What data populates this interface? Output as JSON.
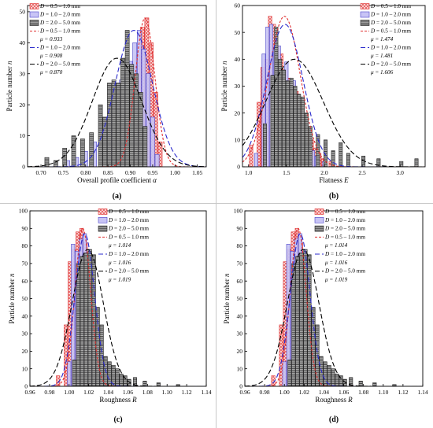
{
  "legend_entries": [
    {
      "D": "D",
      "range": " = 0.5 – 1.0 mm",
      "kind": "bar",
      "fill": "#f4c2c2",
      "stroke": "#e03030",
      "pattern": "cross-hatch"
    },
    {
      "D": "D",
      "range": " = 1.0 – 2.0 mm",
      "kind": "bar",
      "fill": "#c5c2f4",
      "stroke": "#4a44c8",
      "pattern": "solid"
    },
    {
      "D": "D",
      "range": " = 2.0 – 5.0 mm",
      "kind": "bar",
      "fill": "#7a7a7a",
      "stroke": "#222222",
      "pattern": "h-stripes"
    },
    {
      "D": "D",
      "range": " = 0.5 – 1.0 mm",
      "kind": "curve",
      "stroke": "#e03030"
    },
    {
      "D": "D",
      "range": " = 1.0 – 2.0 mm",
      "kind": "curve",
      "stroke": "#2a2acc"
    },
    {
      "D": "D",
      "range": " = 2.0 – 5.0 mm",
      "kind": "curve",
      "stroke": "#000000"
    }
  ],
  "chart_data": [
    {
      "type": "bar",
      "panel_label": "(a)",
      "xlabel_text": "Overall profile coefficient ",
      "xlabel_sym": "α",
      "ylabel_text": "Particle number ",
      "ylabel_sym": "n",
      "xlim": [
        0.67,
        1.07
      ],
      "ylim": [
        0,
        52
      ],
      "xticks": [
        "0.70",
        "0.75",
        "0.80",
        "0.85",
        "0.90",
        "0.95",
        "1.00",
        "1.05"
      ],
      "xtick_values": [
        0.7,
        0.75,
        0.8,
        0.85,
        0.9,
        0.95,
        1.0,
        1.05
      ],
      "yticks": [
        "0",
        "10",
        "20",
        "30",
        "40",
        "50"
      ],
      "ytick_values": [
        0,
        10,
        20,
        30,
        40,
        50
      ],
      "mu_labels": [
        "μ = 0.933",
        "μ = 0.908",
        "μ = 0.870"
      ],
      "bin_width": 0.01,
      "series": [
        {
          "name": "D = 0.5 – 1.0 mm",
          "x": [
            0.88,
            0.89,
            0.9,
            0.91,
            0.92,
            0.93,
            0.94,
            0.95,
            0.96,
            0.97
          ],
          "values": [
            2,
            6,
            14,
            24,
            36,
            45,
            48,
            40,
            24,
            8
          ]
        },
        {
          "name": "D = 1.0 – 2.0 mm",
          "x": [
            0.76,
            0.78,
            0.8,
            0.82,
            0.84,
            0.85,
            0.86,
            0.87,
            0.88,
            0.89,
            0.9,
            0.91,
            0.92,
            0.93,
            0.94,
            0.95,
            0.96
          ],
          "values": [
            2,
            3,
            5,
            8,
            12,
            16,
            20,
            24,
            28,
            30,
            34,
            40,
            44,
            38,
            30,
            16,
            4
          ]
        },
        {
          "name": "D = 2.0 – 5.0 mm",
          "x": [
            0.71,
            0.73,
            0.75,
            0.77,
            0.79,
            0.81,
            0.83,
            0.84,
            0.85,
            0.86,
            0.87,
            0.88,
            0.89,
            0.9,
            0.91,
            0.92,
            0.93
          ],
          "values": [
            3,
            2,
            6,
            10,
            9,
            11,
            20,
            16,
            27,
            28,
            27,
            35,
            44,
            33,
            30,
            24,
            13
          ]
        }
      ],
      "curves": [
        {
          "mu": 0.933,
          "sigma": 0.022,
          "peak": 48
        },
        {
          "mu": 0.908,
          "sigma": 0.042,
          "peak": 44
        },
        {
          "mu": 0.87,
          "sigma": 0.055,
          "peak": 35
        }
      ]
    },
    {
      "type": "bar",
      "panel_label": "(b)",
      "xlabel_text": "Flatness ",
      "xlabel_sym": "E",
      "ylabel_text": "Particle number ",
      "ylabel_sym": "n",
      "xlim": [
        0.92,
        3.33
      ],
      "ylim": [
        0,
        60
      ],
      "xticks": [
        "1.0",
        "1.5",
        "2.0",
        "2.5",
        "3.0"
      ],
      "xtick_values": [
        1.0,
        1.5,
        2.0,
        2.5,
        3.0
      ],
      "yticks": [
        "0",
        "10",
        "20",
        "30",
        "40",
        "50",
        "60"
      ],
      "ytick_values": [
        0,
        10,
        20,
        30,
        40,
        50,
        60
      ],
      "mu_labels": [
        "μ = 1.474",
        "μ = 1.481",
        "μ = 1.606"
      ],
      "bin_width": 0.05,
      "series": [
        {
          "name": "D = 0.5 – 1.0 mm",
          "x": [
            1.05,
            1.15,
            1.2,
            1.25,
            1.3,
            1.35,
            1.4,
            1.45,
            1.5,
            1.55,
            1.6,
            1.65,
            1.7,
            1.75,
            1.8,
            1.85,
            1.9,
            1.95,
            2.0,
            2.1
          ],
          "values": [
            8,
            24,
            37,
            40,
            56,
            53,
            45,
            42,
            36,
            33,
            31,
            28,
            24,
            18,
            14,
            10,
            7,
            5,
            3,
            2
          ]
        },
        {
          "name": "D = 1.0 – 2.0 mm",
          "x": [
            1.1,
            1.2,
            1.25,
            1.3,
            1.35,
            1.4,
            1.45,
            1.5,
            1.55,
            1.6,
            1.65,
            1.7,
            1.75,
            1.8,
            1.85,
            1.9,
            2.0
          ],
          "values": [
            5,
            42,
            52,
            53,
            44,
            45,
            32,
            39,
            31,
            32,
            22,
            16,
            10,
            8,
            6,
            4,
            2
          ]
        },
        {
          "name": "D = 2.0 – 5.0 mm",
          "x": [
            1.2,
            1.3,
            1.35,
            1.4,
            1.45,
            1.5,
            1.55,
            1.6,
            1.65,
            1.7,
            1.75,
            1.8,
            1.9,
            2.0,
            2.1,
            2.2,
            2.3,
            2.5,
            2.7,
            3.0,
            3.2
          ],
          "values": [
            16,
            34,
            52,
            40,
            36,
            32,
            33,
            30,
            27,
            26,
            20,
            15,
            12,
            10,
            6,
            9,
            5,
            4,
            3,
            2,
            3
          ]
        }
      ],
      "curves": [
        {
          "mu": 1.474,
          "sigma": 0.21,
          "peak": 56
        },
        {
          "mu": 1.481,
          "sigma": 0.24,
          "peak": 53
        },
        {
          "mu": 1.606,
          "sigma": 0.38,
          "peak": 40
        }
      ]
    },
    {
      "type": "bar",
      "panel_label": "(c)",
      "xlabel_text": "Roughness ",
      "xlabel_sym": "R",
      "ylabel_text": "Particle number ",
      "ylabel_sym": "n",
      "xlim": [
        0.96,
        1.14
      ],
      "ylim": [
        0,
        100
      ],
      "xticks": [
        "0.96",
        "0.98",
        "1.00",
        "1.02",
        "1.04",
        "1.06",
        "1.08",
        "1.10",
        "1.12",
        "1.14"
      ],
      "xtick_values": [
        0.96,
        0.98,
        1.0,
        1.02,
        1.04,
        1.06,
        1.08,
        1.1,
        1.12,
        1.14
      ],
      "yticks": [
        "0",
        "10",
        "20",
        "30",
        "40",
        "50",
        "60",
        "70",
        "80",
        "90",
        "100"
      ],
      "ytick_values": [
        0,
        10,
        20,
        30,
        40,
        50,
        60,
        70,
        80,
        90,
        100
      ],
      "mu_labels": [
        "μ = 1.014",
        "μ = 1.016",
        "μ = 1.019"
      ],
      "bin_width": 0.004,
      "series": [
        {
          "name": "D = 0.5 – 1.0 mm",
          "x": [
            0.99,
            0.998,
            1.002,
            1.006,
            1.01,
            1.014,
            1.018,
            1.022,
            1.026,
            1.03,
            1.034
          ],
          "values": [
            6,
            35,
            71,
            78,
            88,
            90,
            82,
            40,
            18,
            7,
            3
          ]
        },
        {
          "name": "D = 1.0 – 2.0 mm",
          "x": [
            1.0,
            1.004,
            1.008,
            1.012,
            1.016,
            1.02,
            1.024,
            1.028,
            1.032,
            1.036,
            1.04,
            1.048,
            1.06
          ],
          "values": [
            14,
            81,
            77,
            84,
            87,
            45,
            33,
            22,
            18,
            14,
            13,
            5,
            3
          ]
        },
        {
          "name": "D = 2.0 – 5.0 mm",
          "x": [
            1.004,
            1.008,
            1.012,
            1.016,
            1.02,
            1.024,
            1.028,
            1.032,
            1.036,
            1.04,
            1.044,
            1.048,
            1.052,
            1.056,
            1.06,
            1.066,
            1.076,
            1.09,
            1.11
          ],
          "values": [
            15,
            70,
            74,
            76,
            78,
            75,
            45,
            35,
            17,
            14,
            12,
            10,
            7,
            6,
            4,
            5,
            3,
            2,
            1
          ]
        }
      ],
      "curves": [
        {
          "mu": 1.014,
          "sigma": 0.008,
          "peak": 90
        },
        {
          "mu": 1.016,
          "sigma": 0.01,
          "peak": 87
        },
        {
          "mu": 1.019,
          "sigma": 0.016,
          "peak": 78
        }
      ]
    },
    {
      "type": "bar",
      "panel_label": "(d)",
      "xlabel_text": "Roughness ",
      "xlabel_sym": "R",
      "ylabel_text": "Particle number ",
      "ylabel_sym": "n",
      "xlim": [
        0.96,
        1.14
      ],
      "ylim": [
        0,
        100
      ],
      "xticks": [
        "0.96",
        "0.98",
        "1.00",
        "1.02",
        "1.04",
        "1.06",
        "1.08",
        "1.10",
        "1.12",
        "1.14"
      ],
      "xtick_values": [
        0.96,
        0.98,
        1.0,
        1.02,
        1.04,
        1.06,
        1.08,
        1.1,
        1.12,
        1.14
      ],
      "yticks": [
        "0",
        "10",
        "20",
        "30",
        "40",
        "50",
        "60",
        "70",
        "80",
        "90",
        "100"
      ],
      "ytick_values": [
        0,
        10,
        20,
        30,
        40,
        50,
        60,
        70,
        80,
        90,
        100
      ],
      "mu_labels": [
        "μ = 1.014",
        "μ = 1.016",
        "μ = 1.019"
      ],
      "bin_width": 0.004,
      "series": [
        {
          "name": "D = 0.5 – 1.0 mm",
          "x": [
            0.99,
            0.998,
            1.002,
            1.006,
            1.01,
            1.014,
            1.018,
            1.022,
            1.026,
            1.03,
            1.034
          ],
          "values": [
            6,
            35,
            71,
            78,
            88,
            90,
            82,
            40,
            18,
            7,
            3
          ]
        },
        {
          "name": "D = 1.0 – 2.0 mm",
          "x": [
            1.0,
            1.004,
            1.008,
            1.012,
            1.016,
            1.02,
            1.024,
            1.028,
            1.032,
            1.036,
            1.04,
            1.048,
            1.06
          ],
          "values": [
            14,
            81,
            77,
            84,
            87,
            45,
            33,
            22,
            18,
            14,
            13,
            5,
            3
          ]
        },
        {
          "name": "D = 2.0 – 5.0 mm",
          "x": [
            1.004,
            1.008,
            1.012,
            1.016,
            1.02,
            1.024,
            1.028,
            1.032,
            1.036,
            1.04,
            1.044,
            1.048,
            1.052,
            1.056,
            1.06,
            1.066,
            1.076,
            1.09,
            1.11
          ],
          "values": [
            15,
            70,
            74,
            76,
            78,
            75,
            45,
            35,
            17,
            14,
            12,
            10,
            7,
            6,
            4,
            5,
            3,
            2,
            1
          ]
        }
      ],
      "curves": [
        {
          "mu": 1.014,
          "sigma": 0.008,
          "peak": 90
        },
        {
          "mu": 1.016,
          "sigma": 0.01,
          "peak": 87
        },
        {
          "mu": 1.019,
          "sigma": 0.016,
          "peak": 78
        }
      ]
    }
  ]
}
